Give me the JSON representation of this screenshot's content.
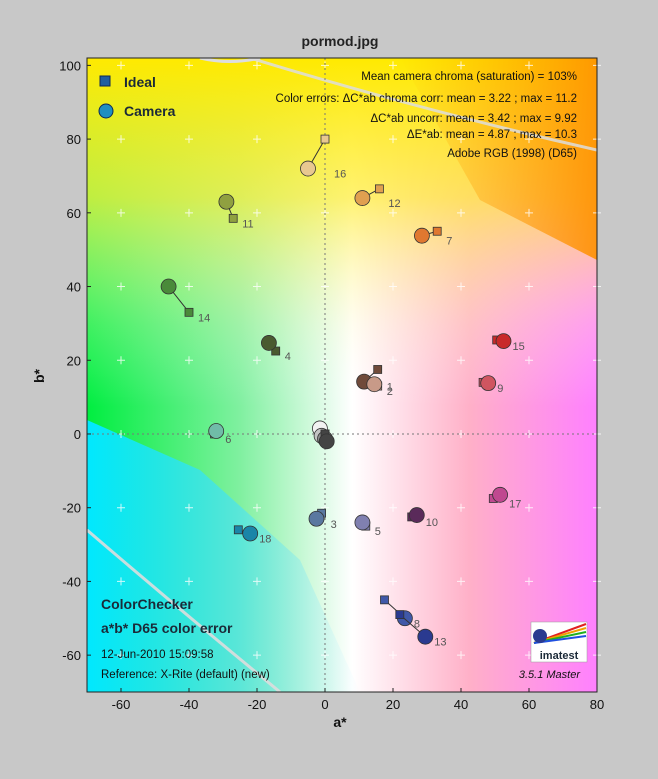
{
  "chart_data": {
    "type": "scatter",
    "title": "pormod.jpg",
    "xlabel": "a*",
    "ylabel": "b*",
    "xlim": [
      -70,
      80
    ],
    "ylim": [
      -70,
      102
    ],
    "xticks": [
      -60,
      -40,
      -20,
      0,
      20,
      40,
      60,
      80
    ],
    "yticks": [
      100,
      80,
      60,
      40,
      20,
      0,
      -20,
      -40,
      -60
    ],
    "grid": true,
    "legend": [
      {
        "name": "Ideal",
        "marker": "square",
        "color": "#1f5f9f"
      },
      {
        "name": "Camera",
        "marker": "circle",
        "color": "#1f8fc0"
      }
    ],
    "info_lines": [
      "Mean camera chroma (saturation) = 103%",
      "Color errors: ΔC*ab chroma corr:  mean = 3.22 ;  max = 11.2",
      "ΔC*ab uncorr:  mean = 3.42 ;  max = 9.92",
      "ΔE*ab:  mean = 4.87 ;  max = 10.3",
      "Adobe RGB (1998) (D65)"
    ],
    "footer": {
      "title1": "ColorChecker",
      "title2": "a*b* D65 color error",
      "date": "12-Jun-2010 15:09:58",
      "reference": "Reference: X-Rite (default) (new)",
      "version": "3.5.1  Master",
      "logo_text": "imatest"
    },
    "patches": [
      {
        "label": "16",
        "ideal": [
          0,
          80
        ],
        "camera": [
          -5,
          72
        ],
        "color": "#e8c890"
      },
      {
        "label": "12",
        "ideal": [
          16,
          66.5
        ],
        "camera": [
          11,
          64
        ],
        "color": "#e0a050"
      },
      {
        "label": "7",
        "ideal": [
          33,
          55
        ],
        "camera": [
          28.5,
          53.8
        ],
        "color": "#e07830"
      },
      {
        "label": "11",
        "ideal": [
          -27,
          58.5
        ],
        "camera": [
          -29,
          63
        ],
        "color": "#90a040"
      },
      {
        "label": "14",
        "ideal": [
          -40,
          33
        ],
        "camera": [
          -46,
          40
        ],
        "color": "#4a8a3a"
      },
      {
        "label": "4",
        "ideal": [
          -14.5,
          22.5
        ],
        "camera": [
          -16.5,
          24.7
        ],
        "color": "#4a5a30"
      },
      {
        "label": "15",
        "ideal": [
          50.5,
          25.5
        ],
        "camera": [
          52.5,
          25.2
        ],
        "color": "#c82a2a"
      },
      {
        "label": "9",
        "ideal": [
          46.5,
          14
        ],
        "camera": [
          48,
          13.8
        ],
        "color": "#d05560"
      },
      {
        "label": "1",
        "ideal": [
          15.5,
          17.5
        ],
        "camera": [
          11.5,
          14.2
        ],
        "color": "#704a3a"
      },
      {
        "label": "2",
        "ideal": [
          15.5,
          13
        ],
        "camera": [
          14.5,
          13.5
        ],
        "color": "#c89a88"
      },
      {
        "label": "6",
        "ideal": [
          -32.5,
          0
        ],
        "camera": [
          -32,
          0.8
        ],
        "color": "#70bca8"
      },
      {
        "label": "",
        "ideal": [
          0,
          0
        ],
        "camera": [
          -1.5,
          1.5
        ],
        "color": "#f2f2f2"
      },
      {
        "label": "",
        "ideal": [
          0,
          0
        ],
        "camera": [
          -1,
          -0.5
        ],
        "color": "#c4c4c4"
      },
      {
        "label": "",
        "ideal": [
          0,
          0
        ],
        "camera": [
          0,
          -1.3
        ],
        "color": "#8a8a8a"
      },
      {
        "label": "",
        "ideal": [
          0,
          0
        ],
        "camera": [
          0.5,
          -2
        ],
        "color": "#444444"
      },
      {
        "label": "17",
        "ideal": [
          49.5,
          -17.5
        ],
        "camera": [
          51.5,
          -16.5
        ],
        "color": "#c04890"
      },
      {
        "label": "10",
        "ideal": [
          25.5,
          -22.5
        ],
        "camera": [
          27,
          -22
        ],
        "color": "#5a2a5a"
      },
      {
        "label": "3",
        "ideal": [
          -1,
          -21.5
        ],
        "camera": [
          -2.5,
          -23
        ],
        "color": "#5a78a0"
      },
      {
        "label": "5",
        "ideal": [
          12,
          -25
        ],
        "camera": [
          11,
          -24
        ],
        "color": "#8080b0"
      },
      {
        "label": "18",
        "ideal": [
          -25.5,
          -26
        ],
        "camera": [
          -22,
          -27
        ],
        "color": "#1a85a8"
      },
      {
        "label": "8",
        "ideal": [
          17.5,
          -45
        ],
        "camera": [
          23.5,
          -50
        ],
        "color": "#4058a8"
      },
      {
        "label": "13",
        "ideal": [
          22,
          -49
        ],
        "camera": [
          29.5,
          -55
        ],
        "color": "#2a3a90"
      }
    ]
  }
}
